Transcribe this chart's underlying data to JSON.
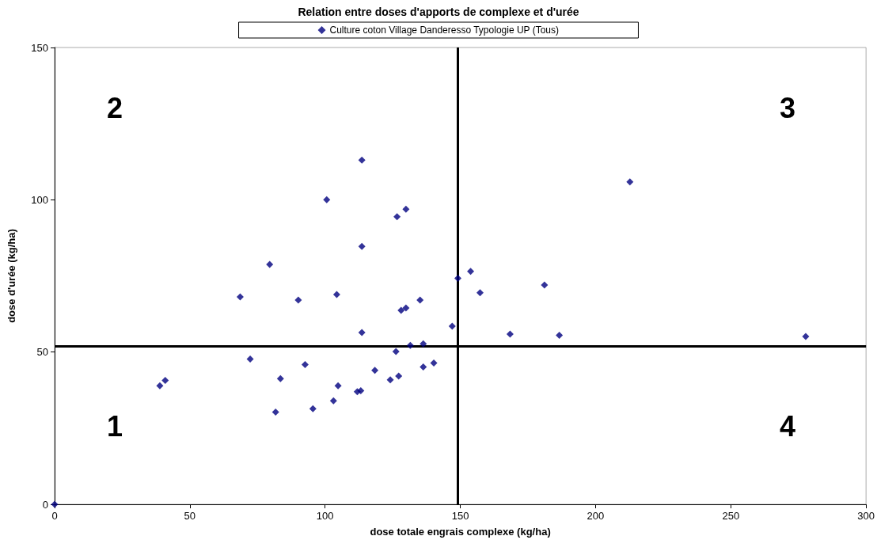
{
  "chart_data": {
    "type": "scatter",
    "title": "Relation entre doses d'apports de complexe et d'urée",
    "xlabel": "dose totale engrais complexe (kg/ha)",
    "ylabel": "dose d'urée (kg/ha)",
    "xlim": [
      0,
      300
    ],
    "xticks": [
      0,
      50,
      100,
      150,
      200,
      250,
      300
    ],
    "ylim": [
      0,
      150
    ],
    "yticks": [
      0,
      50,
      100,
      150
    ],
    "grid": false,
    "legend": "top",
    "marker": "diamond",
    "series": [
      {
        "name": "Culture coton Village Danderesso Typologie UP (Tous)",
        "color": "#000080",
        "x": [
          0,
          38.9,
          40.9,
          113.6,
          100.6,
          126.6,
          129.9,
          113.6,
          79.5,
          68.6,
          90.1,
          104.3,
          135.1,
          128.1,
          129.9,
          153.8,
          149.1,
          157.3,
          147.0,
          113.6,
          168.4,
          131.5,
          136.3,
          126.2,
          72.3,
          92.6,
          140.2,
          136.3,
          118.4,
          83.5,
          127.2,
          124.1,
          104.8,
          111.9,
          113.2,
          103.1,
          95.5,
          81.7,
          212.7,
          181.1,
          186.6,
          277.7
        ],
        "values": [
          0,
          38.9,
          40.7,
          113.0,
          100.0,
          94.4,
          96.9,
          84.7,
          78.8,
          68.1,
          67.1,
          68.9,
          67.1,
          63.7,
          64.5,
          76.5,
          74.2,
          69.5,
          58.5,
          56.4,
          55.9,
          52.2,
          52.7,
          50.2,
          47.7,
          45.9,
          46.4,
          45.1,
          44.0,
          41.3,
          42.1,
          40.9,
          38.9,
          37.0,
          37.3,
          34.0,
          31.4,
          30.3,
          105.9,
          72.0,
          55.5,
          55.1
        ]
      }
    ],
    "ref_lines": [
      {
        "axis": "x",
        "value": 149,
        "color": "#000000"
      },
      {
        "axis": "y",
        "value": 52,
        "color": "#000000"
      }
    ],
    "annotations": [
      "1",
      "2",
      "3",
      "4"
    ]
  }
}
